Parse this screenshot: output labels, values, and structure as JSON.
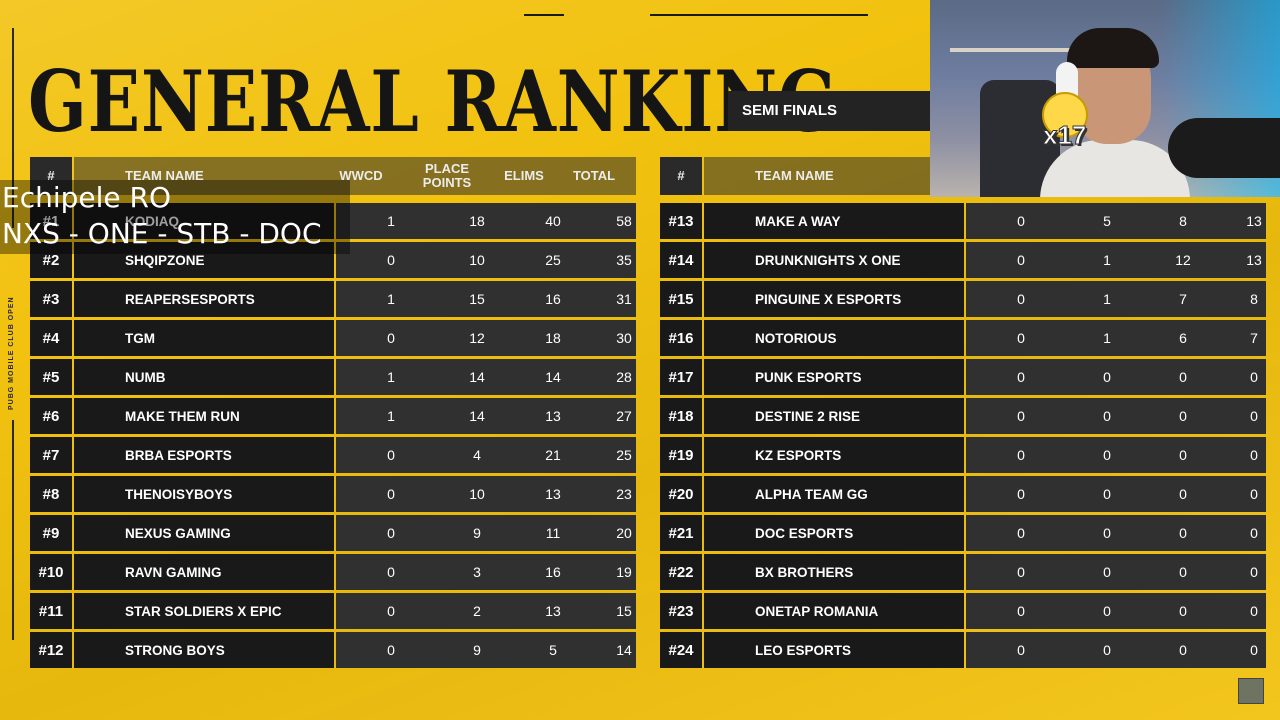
{
  "title": "GENERAL RANKING",
  "stage": "SEMI FINALS",
  "side_text": "PUBG MOBILE CLUB OPEN",
  "overlay": {
    "line1": "Echipele RO",
    "line2": "NXS - ONE - STB - DOC"
  },
  "webcam": {
    "emote_text": "x17"
  },
  "left_table": {
    "headers": {
      "rank": "#",
      "team": "TEAM NAME",
      "wwcd": "WWCD",
      "place": "PLACE POINTS",
      "elims": "ELIMS",
      "total": "TOTAL"
    },
    "rows": [
      {
        "rank": "#1",
        "team": "KODIAQ",
        "wwcd": "1",
        "place": "18",
        "elims": "40",
        "total": "58"
      },
      {
        "rank": "#2",
        "team": "SHQIPZONE",
        "wwcd": "0",
        "place": "10",
        "elims": "25",
        "total": "35"
      },
      {
        "rank": "#3",
        "team": "REAPERSESPORTS",
        "wwcd": "1",
        "place": "15",
        "elims": "16",
        "total": "31"
      },
      {
        "rank": "#4",
        "team": "TGM",
        "wwcd": "0",
        "place": "12",
        "elims": "18",
        "total": "30"
      },
      {
        "rank": "#5",
        "team": "NUMB",
        "wwcd": "1",
        "place": "14",
        "elims": "14",
        "total": "28"
      },
      {
        "rank": "#6",
        "team": "MAKE THEM RUN",
        "wwcd": "1",
        "place": "14",
        "elims": "13",
        "total": "27"
      },
      {
        "rank": "#7",
        "team": "BRBA ESPORTS",
        "wwcd": "0",
        "place": "4",
        "elims": "21",
        "total": "25"
      },
      {
        "rank": "#8",
        "team": "THENOISYBOYS",
        "wwcd": "0",
        "place": "10",
        "elims": "13",
        "total": "23"
      },
      {
        "rank": "#9",
        "team": "NEXUS GAMING",
        "wwcd": "0",
        "place": "9",
        "elims": "11",
        "total": "20"
      },
      {
        "rank": "#10",
        "team": "RAVN GAMING",
        "wwcd": "0",
        "place": "3",
        "elims": "16",
        "total": "19"
      },
      {
        "rank": "#11",
        "team": "STAR SOLDIERS X EPIC",
        "wwcd": "0",
        "place": "2",
        "elims": "13",
        "total": "15"
      },
      {
        "rank": "#12",
        "team": "STRONG BOYS",
        "wwcd": "0",
        "place": "9",
        "elims": "5",
        "total": "14"
      }
    ]
  },
  "right_table": {
    "headers": {
      "rank": "#",
      "team": "TEAM NAME"
    },
    "rows": [
      {
        "rank": "#13",
        "team": "MAKE A WAY",
        "wwcd": "0",
        "place": "5",
        "elims": "8",
        "total": "13"
      },
      {
        "rank": "#14",
        "team": "DRUNKNIGHTS X ONE",
        "wwcd": "0",
        "place": "1",
        "elims": "12",
        "total": "13"
      },
      {
        "rank": "#15",
        "team": "PINGUINE X ESPORTS",
        "wwcd": "0",
        "place": "1",
        "elims": "7",
        "total": "8"
      },
      {
        "rank": "#16",
        "team": "NOTORIOUS",
        "wwcd": "0",
        "place": "1",
        "elims": "6",
        "total": "7"
      },
      {
        "rank": "#17",
        "team": "PUNK ESPORTS",
        "wwcd": "0",
        "place": "0",
        "elims": "0",
        "total": "0"
      },
      {
        "rank": "#18",
        "team": "DESTINE 2 RISE",
        "wwcd": "0",
        "place": "0",
        "elims": "0",
        "total": "0"
      },
      {
        "rank": "#19",
        "team": "KZ ESPORTS",
        "wwcd": "0",
        "place": "0",
        "elims": "0",
        "total": "0"
      },
      {
        "rank": "#20",
        "team": "ALPHA TEAM GG",
        "wwcd": "0",
        "place": "0",
        "elims": "0",
        "total": "0"
      },
      {
        "rank": "#21",
        "team": "DOC ESPORTS",
        "wwcd": "0",
        "place": "0",
        "elims": "0",
        "total": "0"
      },
      {
        "rank": "#22",
        "team": "BX BROTHERS",
        "wwcd": "0",
        "place": "0",
        "elims": "0",
        "total": "0"
      },
      {
        "rank": "#23",
        "team": "ONETAP ROMANIA",
        "wwcd": "0",
        "place": "0",
        "elims": "0",
        "total": "0"
      },
      {
        "rank": "#24",
        "team": "LEO ESPORTS",
        "wwcd": "0",
        "place": "0",
        "elims": "0",
        "total": "0"
      }
    ]
  }
}
